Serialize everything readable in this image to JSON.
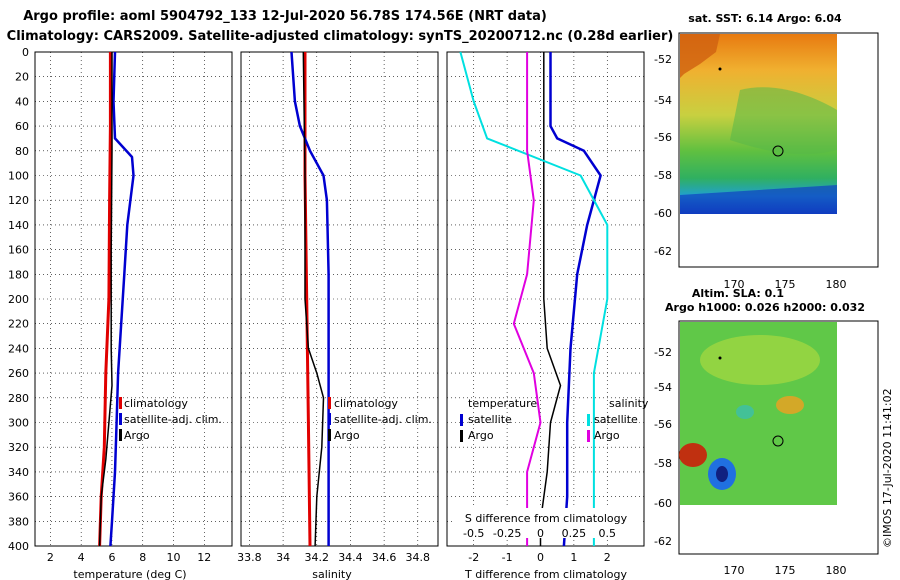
{
  "title_line1": "Argo profile: aoml 5904792_133 12-Jul-2020 56.78S 174.56E (NRT data)",
  "title_line2": "Climatology: CARS2009. Satellite-adjusted climatology: synTS_20200712.nc (0.28d earlier)",
  "depth_ticks": [
    0,
    20,
    40,
    60,
    80,
    100,
    120,
    140,
    160,
    180,
    200,
    220,
    240,
    260,
    280,
    300,
    320,
    340,
    360,
    380,
    400
  ],
  "colors": {
    "climatology": "#e00000",
    "satellite": "#0000d0",
    "argo": "#000000",
    "cyan": "#00e0e0",
    "magenta": "#e000e0"
  },
  "chart_data": [
    {
      "type": "line",
      "title": "",
      "xlabel": "temperature (deg C)",
      "ylabel": "",
      "xlim": [
        1,
        13.8
      ],
      "ylim": [
        400,
        0
      ],
      "xticks": [
        "2",
        "4",
        "6",
        "8",
        "10",
        "12"
      ],
      "legend": [
        "climatology",
        "satellite-adj. clim.",
        "Argo"
      ],
      "series": [
        {
          "name": "climatology",
          "color": "#e00000",
          "width": 3,
          "points": [
            [
              5.9,
              0
            ],
            [
              5.9,
              60
            ],
            [
              5.85,
              120
            ],
            [
              5.8,
              200
            ],
            [
              5.6,
              260
            ],
            [
              5.5,
              320
            ],
            [
              5.3,
              360
            ],
            [
              5.2,
              400
            ]
          ]
        },
        {
          "name": "satellite-adj. clim.",
          "color": "#0000d0",
          "width": 2.5,
          "points": [
            [
              6.2,
              0
            ],
            [
              6.1,
              40
            ],
            [
              6.2,
              70
            ],
            [
              7.3,
              85
            ],
            [
              7.4,
              100
            ],
            [
              7.0,
              140
            ],
            [
              6.8,
              180
            ],
            [
              6.6,
              220
            ],
            [
              6.4,
              260
            ],
            [
              6.3,
              300
            ],
            [
              6.2,
              340
            ],
            [
              6.0,
              380
            ],
            [
              5.9,
              400
            ]
          ]
        },
        {
          "name": "Argo",
          "color": "#000000",
          "width": 1.5,
          "points": [
            [
              6.0,
              0
            ],
            [
              6.0,
              80
            ],
            [
              5.95,
              160
            ],
            [
              5.95,
              240
            ],
            [
              6.0,
              270
            ],
            [
              5.8,
              300
            ],
            [
              5.6,
              330
            ],
            [
              5.3,
              360
            ],
            [
              5.2,
              400
            ]
          ]
        }
      ]
    },
    {
      "type": "line",
      "title": "",
      "xlabel": "salinity",
      "ylabel": "",
      "xlim": [
        33.75,
        34.92
      ],
      "ylim": [
        400,
        0
      ],
      "xticks": [
        "33.8",
        "34",
        "34.2",
        "34.4",
        "34.6",
        "34.8"
      ],
      "legend": [
        "climatology",
        "satellite-adj. clim.",
        "Argo"
      ],
      "series": [
        {
          "name": "climatology",
          "color": "#e00000",
          "width": 3,
          "points": [
            [
              34.13,
              0
            ],
            [
              34.13,
              100
            ],
            [
              34.14,
              200
            ],
            [
              34.15,
              300
            ],
            [
              34.16,
              400
            ]
          ]
        },
        {
          "name": "satellite-adj. clim.",
          "color": "#0000d0",
          "width": 2.5,
          "points": [
            [
              34.05,
              0
            ],
            [
              34.07,
              40
            ],
            [
              34.1,
              60
            ],
            [
              34.16,
              80
            ],
            [
              34.24,
              100
            ],
            [
              34.26,
              120
            ],
            [
              34.27,
              180
            ],
            [
              34.27,
              260
            ],
            [
              34.27,
              400
            ]
          ]
        },
        {
          "name": "Argo",
          "color": "#000000",
          "width": 1.5,
          "points": [
            [
              34.12,
              0
            ],
            [
              34.13,
              100
            ],
            [
              34.13,
              200
            ],
            [
              34.15,
              240
            ],
            [
              34.2,
              260
            ],
            [
              34.24,
              280
            ],
            [
              34.23,
              320
            ],
            [
              34.2,
              360
            ],
            [
              34.19,
              400
            ]
          ]
        }
      ]
    },
    {
      "type": "line",
      "title": "",
      "xlabel": "T difference from climatology",
      "x2label": "S difference from climatology",
      "ylabel": "",
      "xlim": [
        -2.8,
        3.1
      ],
      "ylim": [
        400,
        0
      ],
      "xticks": [
        "-2",
        "-1",
        "0",
        "1",
        "2"
      ],
      "x2ticks": [
        "-0.5",
        "-0.25",
        "0",
        "0.25",
        "0.5"
      ],
      "legend_left_title": "temperature",
      "legend_right_title": "salinity",
      "legend": [
        "satellite",
        "Argo",
        "satellite",
        "Argo"
      ],
      "series": [
        {
          "name": "T satellite",
          "color": "#0000d0",
          "width": 2.5,
          "points": [
            [
              0.3,
              0
            ],
            [
              0.3,
              60
            ],
            [
              0.5,
              70
            ],
            [
              1.3,
              80
            ],
            [
              1.8,
              100
            ],
            [
              1.4,
              140
            ],
            [
              1.1,
              180
            ],
            [
              0.9,
              240
            ],
            [
              0.8,
              300
            ],
            [
              0.8,
              360
            ],
            [
              0.7,
              400
            ]
          ]
        },
        {
          "name": "T Argo",
          "color": "#000000",
          "width": 1.5,
          "points": [
            [
              0.1,
              0
            ],
            [
              0.1,
              100
            ],
            [
              0.1,
              200
            ],
            [
              0.2,
              240
            ],
            [
              0.6,
              270
            ],
            [
              0.3,
              300
            ],
            [
              0.2,
              340
            ],
            [
              0.0,
              380
            ],
            [
              0.0,
              400
            ]
          ]
        },
        {
          "name": "S satellite",
          "color": "#00e0e0",
          "width": 2,
          "points": [
            [
              -0.6,
              0
            ],
            [
              -0.5,
              40
            ],
            [
              -0.4,
              70
            ],
            [
              0.3,
              100
            ],
            [
              0.5,
              140
            ],
            [
              0.5,
              200
            ],
            [
              0.4,
              260
            ],
            [
              0.4,
              300
            ],
            [
              0.4,
              400
            ]
          ]
        },
        {
          "name": "S Argo",
          "color": "#e000e0",
          "width": 2,
          "points": [
            [
              -0.1,
              0
            ],
            [
              -0.1,
              80
            ],
            [
              -0.05,
              120
            ],
            [
              -0.1,
              180
            ],
            [
              -0.2,
              220
            ],
            [
              -0.05,
              260
            ],
            [
              0.0,
              300
            ],
            [
              -0.1,
              340
            ],
            [
              -0.1,
              400
            ]
          ]
        }
      ]
    }
  ],
  "maps": [
    {
      "title": "sat. SST: 6.14 Argo: 6.04",
      "yticks": [
        "-52",
        "-54",
        "-56",
        "-58",
        "-60",
        "-62"
      ],
      "xticks": [
        "170",
        "175",
        "180"
      ],
      "argo_position": {
        "lon": 174.56,
        "lat": -56.78
      }
    },
    {
      "title_line1": "Altim. SLA: 0.1",
      "title_line2": "Argo h1000: 0.026 h2000: 0.032",
      "yticks": [
        "-52",
        "-54",
        "-56",
        "-58",
        "-60",
        "-62"
      ],
      "xticks": [
        "170",
        "175",
        "180"
      ],
      "argo_position": {
        "lon": 174.56,
        "lat": -56.78
      }
    }
  ],
  "credit": "©IMOS 17-Jul-2020 11:41:02"
}
